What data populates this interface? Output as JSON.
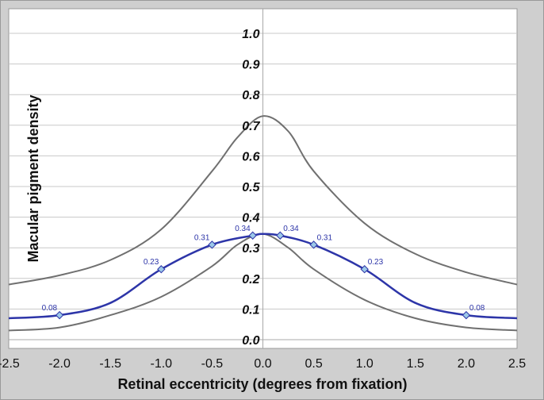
{
  "chart_data": {
    "type": "line",
    "xlabel": "Retinal eccentricity (degrees from fixation)",
    "ylabel": "Macular pigment density",
    "xlim": [
      -2.5,
      2.5
    ],
    "ylim": [
      0.0,
      1.0
    ],
    "x_ticks": [
      "-2.5",
      "-2.0",
      "-1.5",
      "-1.0",
      "-0.5",
      "0.0",
      "0.5",
      "1.0",
      "1.5",
      "2.0",
      "2.5"
    ],
    "y_ticks": [
      "0.0",
      "0.1",
      "0.2",
      "0.3",
      "0.4",
      "0.5",
      "0.6",
      "0.7",
      "0.8",
      "0.9",
      "1.0"
    ],
    "grid": true,
    "colors": {
      "main": "#2d35a8",
      "marker": "#9cc8e8",
      "band": "#707070"
    },
    "series": [
      {
        "role": "main",
        "x": [
          -2.5,
          -2.0,
          -1.5,
          -1.0,
          -0.5,
          -0.1,
          0.0,
          0.17,
          0.5,
          1.0,
          1.5,
          2.0,
          2.5
        ],
        "y": [
          0.07,
          0.08,
          0.12,
          0.23,
          0.31,
          0.34,
          0.345,
          0.34,
          0.31,
          0.23,
          0.12,
          0.08,
          0.07
        ],
        "markers": [
          {
            "x": -2.0,
            "y": 0.08,
            "label": "0.08"
          },
          {
            "x": -1.0,
            "y": 0.23,
            "label": "0.23"
          },
          {
            "x": -0.5,
            "y": 0.31,
            "label": "0.31"
          },
          {
            "x": -0.1,
            "y": 0.34,
            "label": "0.34"
          },
          {
            "x": 0.17,
            "y": 0.34,
            "label": "0.34"
          },
          {
            "x": 0.5,
            "y": 0.31,
            "label": "0.31"
          },
          {
            "x": 1.0,
            "y": 0.23,
            "label": "0.23"
          },
          {
            "x": 2.0,
            "y": 0.08,
            "label": "0.08"
          }
        ]
      },
      {
        "role": "upper",
        "x": [
          -2.5,
          -2.0,
          -1.5,
          -1.0,
          -0.5,
          -0.25,
          0.0,
          0.25,
          0.5,
          1.0,
          1.5,
          2.0,
          2.5
        ],
        "y": [
          0.18,
          0.21,
          0.26,
          0.36,
          0.55,
          0.66,
          0.73,
          0.68,
          0.55,
          0.38,
          0.28,
          0.22,
          0.18
        ],
        "markers": []
      },
      {
        "role": "lower",
        "x": [
          -2.5,
          -2.0,
          -1.5,
          -1.0,
          -0.5,
          -0.25,
          0.0,
          0.25,
          0.5,
          1.0,
          1.5,
          2.0,
          2.5
        ],
        "y": [
          0.03,
          0.04,
          0.08,
          0.14,
          0.24,
          0.31,
          0.345,
          0.3,
          0.23,
          0.13,
          0.07,
          0.04,
          0.03
        ],
        "markers": []
      }
    ]
  }
}
